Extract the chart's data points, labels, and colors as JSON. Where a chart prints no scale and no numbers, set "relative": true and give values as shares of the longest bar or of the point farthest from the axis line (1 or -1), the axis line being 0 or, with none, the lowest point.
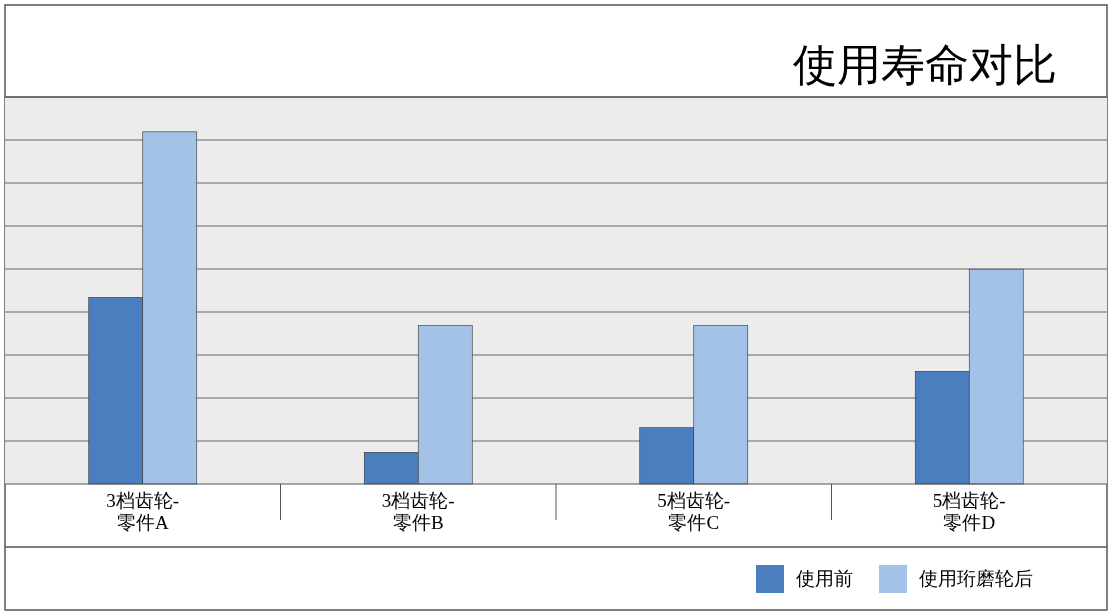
{
  "chart_data": {
    "type": "bar",
    "title": "使用寿命对比",
    "relative": true,
    "grid": "y",
    "legend": "bottom right",
    "categories": [
      "3档齿轮-零件A",
      "3档齿轮-零件B",
      "5档齿轮-零件C",
      "5档齿轮-零件D"
    ],
    "series": [
      {
        "name": "使用前",
        "color": "#4a7ebf",
        "values": [
          0.53,
          0.09,
          0.16,
          0.32
        ]
      },
      {
        "name": "使用珩磨轮后",
        "color": "#a4c2e8",
        "values": [
          1,
          0.45,
          0.45,
          0.61
        ]
      }
    ]
  }
}
